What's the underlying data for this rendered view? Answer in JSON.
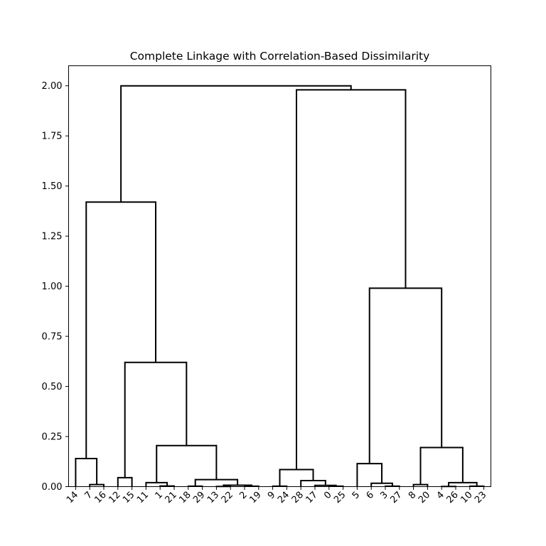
{
  "chart_data": {
    "type": "dendrogram",
    "title": "Complete Linkage with Correlation-Based Dissimilarity",
    "xlabel": "",
    "ylabel": "",
    "ylim": [
      0,
      2.1
    ],
    "y_ticks": [
      0.0,
      0.25,
      0.5,
      0.75,
      1.0,
      1.25,
      1.5,
      1.75,
      2.0
    ],
    "y_tick_labels": [
      "0.00",
      "0.25",
      "0.50",
      "0.75",
      "1.00",
      "1.25",
      "1.50",
      "1.75",
      "2.00"
    ],
    "grid": false,
    "leaf_order": [
      14,
      7,
      16,
      12,
      15,
      11,
      1,
      21,
      18,
      29,
      13,
      22,
      2,
      19,
      9,
      24,
      28,
      17,
      0,
      25,
      5,
      6,
      3,
      27,
      8,
      20,
      4,
      26,
      10,
      23
    ],
    "leaf_labels": [
      "14",
      "7",
      "16",
      "12",
      "15",
      "11",
      "1",
      "21",
      "18",
      "29",
      "13",
      "22",
      "2",
      "19",
      "9",
      "24",
      "28",
      "17",
      "0",
      "25",
      "5",
      "6",
      "3",
      "27",
      "8",
      "20",
      "4",
      "26",
      "10",
      "23"
    ],
    "merges": [
      {
        "left": "7",
        "right": "16",
        "height": 0.01
      },
      {
        "left": "14",
        "right": "[7,16]",
        "height": 0.14
      },
      {
        "left": "12",
        "right": "15",
        "height": 0.045
      },
      {
        "left": "1",
        "right": "21",
        "height": 0.003
      },
      {
        "left": "11",
        "right": "[1,21]",
        "height": 0.02
      },
      {
        "left": "18",
        "right": "29",
        "height": 0.002
      },
      {
        "left": "13",
        "right": "22",
        "height": 0.001
      },
      {
        "left": "2",
        "right": "19",
        "height": 0.002
      },
      {
        "left": "[13,22]",
        "right": "[2,19]",
        "height": 0.007
      },
      {
        "left": "[18,29]",
        "right": "[13,22,2,19]",
        "height": 0.035
      },
      {
        "left": "[11,1,21]",
        "right": "[18,29,13,22,2,19]",
        "height": 0.205
      },
      {
        "left": "[12,15]",
        "right": "[11,1,21,18,29,13,22,2,19]",
        "height": 0.62
      },
      {
        "left": "[14,7,16]",
        "right": "[12,15,11,1,21,18,29,13,22,2,19]",
        "height": 1.42
      },
      {
        "left": "9",
        "right": "24",
        "height": 0.002
      },
      {
        "left": "0",
        "right": "25",
        "height": 0.002
      },
      {
        "left": "17",
        "right": "[0,25]",
        "height": 0.006
      },
      {
        "left": "28",
        "right": "[17,0,25]",
        "height": 0.03
      },
      {
        "left": "[9,24]",
        "right": "[28,17,0,25]",
        "height": 0.085
      },
      {
        "left": "3",
        "right": "27",
        "height": 0.002
      },
      {
        "left": "6",
        "right": "[3,27]",
        "height": 0.017
      },
      {
        "left": "5",
        "right": "[6,3,27]",
        "height": 0.115
      },
      {
        "left": "8",
        "right": "20",
        "height": 0.01
      },
      {
        "left": "4",
        "right": "26",
        "height": 0.001
      },
      {
        "left": "10",
        "right": "23",
        "height": 0.002
      },
      {
        "left": "[4,26]",
        "right": "[10,23]",
        "height": 0.02
      },
      {
        "left": "[8,20]",
        "right": "[4,26,10,23]",
        "height": 0.195
      },
      {
        "left": "[5,6,3,27]",
        "right": "[8,20,4,26,10,23]",
        "height": 0.99
      },
      {
        "left": "[9,24,28,17,0,25]",
        "right": "[5,6,3,27,8,20,4,26,10,23]",
        "height": 1.98
      },
      {
        "left": "[14,...,19]",
        "right": "[9,...,23]",
        "height": 2.0
      }
    ]
  }
}
